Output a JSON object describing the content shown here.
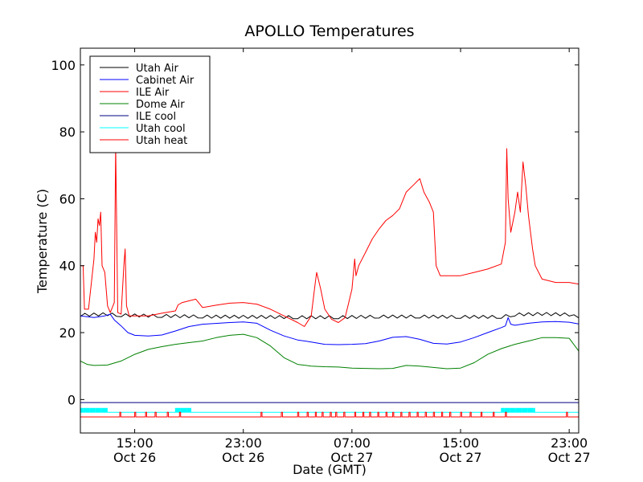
{
  "chart_data": {
    "type": "line",
    "title": "APOLLO Temperatures",
    "xlabel": "Date (GMT)",
    "ylabel": "Temperature (C)",
    "x_range_hours_after_oct26_0000": [
      11,
      47.7
    ],
    "ylim": [
      -10,
      105
    ],
    "grid": false,
    "legend_position": "top-left",
    "y_ticks": [
      0,
      20,
      40,
      60,
      80,
      100
    ],
    "x_ticks": [
      {
        "hour": 15,
        "time": "15:00",
        "date": "Oct 26"
      },
      {
        "hour": 23,
        "time": "23:00",
        "date": "Oct 26"
      },
      {
        "hour": 31,
        "time": "07:00",
        "date": "Oct 27"
      },
      {
        "hour": 39,
        "time": "15:00",
        "date": "Oct 27"
      },
      {
        "hour": 47,
        "time": "23:00",
        "date": "Oct 27"
      }
    ],
    "series": [
      {
        "name": "Utah Air",
        "color": "#000000",
        "style": "sawtooth",
        "points": [
          [
            11,
            25.3
          ],
          [
            13,
            25.5
          ],
          [
            14,
            25.2
          ],
          [
            17,
            25
          ],
          [
            20,
            24.8
          ],
          [
            24,
            24.7
          ],
          [
            27,
            24.6
          ],
          [
            30,
            24.6
          ],
          [
            33,
            24.8
          ],
          [
            36,
            24.8
          ],
          [
            39,
            24.7
          ],
          [
            42,
            24.7
          ],
          [
            43,
            25.4
          ],
          [
            45,
            25.6
          ],
          [
            47,
            25.4
          ],
          [
            47.7,
            24.4
          ]
        ]
      },
      {
        "name": "Cabinet Air",
        "color": "#0000ff",
        "points": [
          [
            11,
            25
          ],
          [
            12,
            24.5
          ],
          [
            12.8,
            25
          ],
          [
            13.2,
            25.5
          ],
          [
            13.5,
            23.8
          ],
          [
            14,
            22
          ],
          [
            14.5,
            20
          ],
          [
            15,
            19.2
          ],
          [
            16,
            19
          ],
          [
            17,
            19.3
          ],
          [
            18,
            20.5
          ],
          [
            19,
            21.8
          ],
          [
            20,
            22.5
          ],
          [
            22,
            23
          ],
          [
            23,
            23.2
          ],
          [
            24,
            22.8
          ],
          [
            25,
            20.7
          ],
          [
            26,
            19
          ],
          [
            27,
            17.8
          ],
          [
            28,
            17.2
          ],
          [
            29,
            16.5
          ],
          [
            30,
            16.4
          ],
          [
            31,
            16.5
          ],
          [
            32,
            16.7
          ],
          [
            33,
            17.5
          ],
          [
            34,
            18.6
          ],
          [
            35,
            18.8
          ],
          [
            36,
            18
          ],
          [
            37,
            16.8
          ],
          [
            38,
            16.6
          ],
          [
            39,
            17.2
          ],
          [
            40,
            18.5
          ],
          [
            41,
            20
          ],
          [
            42,
            21.5
          ],
          [
            42.3,
            22
          ],
          [
            42.5,
            24.5
          ],
          [
            42.7,
            22.5
          ],
          [
            43,
            22.2
          ],
          [
            44,
            22.8
          ],
          [
            45,
            23.2
          ],
          [
            46,
            23.3
          ],
          [
            47,
            23.1
          ],
          [
            47.7,
            22.6
          ]
        ]
      },
      {
        "name": "ILE Air",
        "color": "#ff0000",
        "points": [
          [
            11,
            40
          ],
          [
            11.2,
            40
          ],
          [
            11.3,
            27
          ],
          [
            11.6,
            27
          ],
          [
            12,
            42
          ],
          [
            12.1,
            50
          ],
          [
            12.2,
            47
          ],
          [
            12.3,
            54
          ],
          [
            12.4,
            52
          ],
          [
            12.5,
            56
          ],
          [
            12.6,
            40
          ],
          [
            12.8,
            38
          ],
          [
            13,
            28
          ],
          [
            13.2,
            26
          ],
          [
            13.5,
            29
          ],
          [
            13.6,
            76
          ],
          [
            13.75,
            26
          ],
          [
            14,
            25.5
          ],
          [
            14.2,
            40
          ],
          [
            14.3,
            45
          ],
          [
            14.4,
            28
          ],
          [
            14.6,
            25
          ],
          [
            16,
            25
          ],
          [
            17,
            25.8
          ],
          [
            18,
            26.5
          ],
          [
            18.2,
            28.3
          ],
          [
            18.5,
            29
          ],
          [
            19,
            29.5
          ],
          [
            19.5,
            30
          ],
          [
            20,
            27.5
          ],
          [
            21,
            28.2
          ],
          [
            22,
            28.8
          ],
          [
            23,
            29
          ],
          [
            24,
            28.5
          ],
          [
            25,
            27
          ],
          [
            26,
            25
          ],
          [
            27,
            23
          ],
          [
            27.5,
            21.8
          ],
          [
            28,
            25
          ],
          [
            28.3,
            35
          ],
          [
            28.4,
            38
          ],
          [
            28.7,
            33
          ],
          [
            29,
            27
          ],
          [
            29.5,
            24
          ],
          [
            30,
            23
          ],
          [
            30.5,
            24.5
          ],
          [
            31,
            33
          ],
          [
            31.2,
            42
          ],
          [
            31.3,
            37
          ],
          [
            31.5,
            40
          ],
          [
            32,
            44
          ],
          [
            32.5,
            48
          ],
          [
            33,
            51
          ],
          [
            33.5,
            53.5
          ],
          [
            34,
            55
          ],
          [
            34.5,
            57
          ],
          [
            35,
            62
          ],
          [
            35.5,
            64
          ],
          [
            36,
            66
          ],
          [
            36.3,
            62
          ],
          [
            36.7,
            59
          ],
          [
            37,
            56
          ],
          [
            37.2,
            40
          ],
          [
            37.5,
            37
          ],
          [
            39,
            37
          ],
          [
            40,
            38
          ],
          [
            41,
            39
          ],
          [
            42,
            40.5
          ],
          [
            42.3,
            47
          ],
          [
            42.4,
            75
          ],
          [
            42.5,
            60
          ],
          [
            42.7,
            50
          ],
          [
            43,
            56
          ],
          [
            43.2,
            62
          ],
          [
            43.4,
            56
          ],
          [
            43.6,
            71
          ],
          [
            43.8,
            64
          ],
          [
            44,
            55
          ],
          [
            44.3,
            45
          ],
          [
            44.5,
            40
          ],
          [
            45,
            36
          ],
          [
            46,
            35
          ],
          [
            47,
            35
          ],
          [
            47.7,
            34.5
          ]
        ]
      },
      {
        "name": "Dome Air",
        "color": "#008000",
        "points": [
          [
            11,
            11.5
          ],
          [
            11.5,
            10.5
          ],
          [
            12,
            10.2
          ],
          [
            13,
            10.3
          ],
          [
            14,
            11.5
          ],
          [
            15,
            13.5
          ],
          [
            16,
            15
          ],
          [
            17,
            15.8
          ],
          [
            18,
            16.5
          ],
          [
            19,
            17
          ],
          [
            20,
            17.5
          ],
          [
            21,
            18.5
          ],
          [
            22,
            19.2
          ],
          [
            23,
            19.5
          ],
          [
            24,
            18.5
          ],
          [
            25,
            16
          ],
          [
            26,
            12.5
          ],
          [
            27,
            10.5
          ],
          [
            28,
            10
          ],
          [
            29,
            9.8
          ],
          [
            30,
            9.7
          ],
          [
            31,
            9.4
          ],
          [
            32,
            9.3
          ],
          [
            33,
            9.2
          ],
          [
            34,
            9.3
          ],
          [
            35,
            10.2
          ],
          [
            36,
            10
          ],
          [
            37,
            9.6
          ],
          [
            38,
            9.2
          ],
          [
            39,
            9.4
          ],
          [
            40,
            11
          ],
          [
            41,
            13.5
          ],
          [
            42,
            15.2
          ],
          [
            43,
            16.5
          ],
          [
            44,
            17.5
          ],
          [
            45,
            18.5
          ],
          [
            46,
            18.5
          ],
          [
            47,
            18.3
          ],
          [
            47.7,
            14.5
          ]
        ]
      },
      {
        "name": "ILE cool",
        "color": "#000080",
        "style": "flat",
        "points": [
          [
            11,
            -0.9
          ],
          [
            47.7,
            -0.9
          ]
        ]
      },
      {
        "name": "Utah cool",
        "color": "#00ffff",
        "style": "flat_with_bursts",
        "bursts": [
          [
            11,
            13
          ],
          [
            18,
            19.2
          ],
          [
            42,
            44.5
          ]
        ],
        "low": -3.8,
        "high": -2.6
      },
      {
        "name": "Utah heat",
        "color": "#ff0000",
        "style": "pulses",
        "low": -5.2,
        "high": -3.8,
        "pulse_hours": [
          13.9,
          15,
          15.8,
          16.5,
          17.4,
          18.3,
          24.3,
          25.8,
          27,
          27.7,
          28.3,
          28.8,
          29.4,
          29.8,
          30.4,
          31.2,
          31.8,
          32.3,
          32.9,
          33.5,
          34,
          34.6,
          35.2,
          35.8,
          36.4,
          37,
          37.6,
          38.2,
          39,
          39.7,
          40.5,
          41.4,
          42.3,
          46.8
        ]
      }
    ]
  }
}
